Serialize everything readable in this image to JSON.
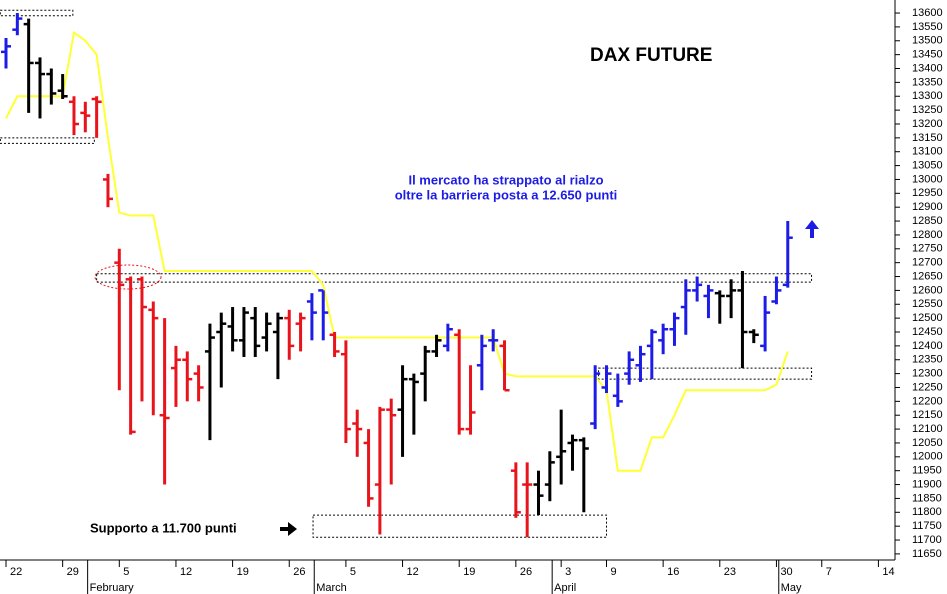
{
  "chart_data": {
    "type": "ohlc",
    "title": "DAX FUTURE",
    "annotations": [
      "Il mercato ha strappato al rialzo",
      "oltre la barriera posta a 12.650 punti",
      "Supporto a 11.700 punti"
    ],
    "categories": [
      "22",
      null,
      null,
      null,
      null,
      "29",
      null,
      null,
      null,
      null,
      "5",
      null,
      null,
      null,
      null,
      "12",
      null,
      null,
      null,
      null,
      "19",
      null,
      null,
      null,
      null,
      "26",
      null,
      null,
      null,
      null,
      "5",
      null,
      null,
      null,
      null,
      "12",
      null,
      null,
      null,
      null,
      "19",
      null,
      null,
      null,
      null,
      "26",
      null,
      null,
      null,
      "3",
      null,
      null,
      null,
      "9",
      null,
      null,
      null,
      null,
      "16",
      null,
      null,
      null,
      null,
      "23",
      null,
      null,
      null,
      null,
      "30",
      null,
      null,
      null,
      "7",
      null,
      null,
      null,
      null,
      "14",
      null
    ],
    "months": [
      {
        "label": "February",
        "index": 8
      },
      {
        "label": "March",
        "index": 28
      },
      {
        "label": "April",
        "index": 49
      },
      {
        "label": "May",
        "index": 69
      }
    ],
    "open": [
      13460,
      13540,
      13560,
      13420,
      13380,
      13320,
      13280,
      13240,
      13290,
      13000,
      12700,
      12640,
      12640,
      12530,
      12150,
      12320,
      12350,
      12300,
      12380,
      12450,
      12470,
      12420,
      12500,
      12430,
      12450,
      12500,
      12480,
      12560,
      12600,
      12440,
      12370,
      12120,
      12050,
      11900,
      12170,
      12170,
      12280,
      12300,
      12380,
      12400,
      12440,
      12100,
      12330,
      12420,
      12400,
      11950,
      11900,
      11900,
      11900,
      12000,
      12050,
      12060,
      12120,
      12250,
      12220,
      12300,
      12330,
      12400,
      12420,
      12460,
      12540,
      12600,
      12580,
      12590,
      12580,
      12600,
      12450,
      12400,
      12560,
      12620,
      null,
      null,
      null,
      null,
      null,
      null,
      null,
      null,
      null
    ],
    "high": [
      13510,
      13600,
      13580,
      13440,
      13400,
      13380,
      13300,
      13280,
      13300,
      13020,
      12750,
      12650,
      12650,
      12560,
      12500,
      12400,
      12380,
      12330,
      12480,
      12520,
      12540,
      12540,
      12540,
      12520,
      12520,
      12530,
      12520,
      12590,
      12600,
      12450,
      12420,
      12170,
      12100,
      12180,
      12210,
      12330,
      12300,
      12400,
      12440,
      12480,
      12460,
      12330,
      12440,
      12460,
      12420,
      11980,
      11980,
      11950,
      12020,
      12170,
      12080,
      12070,
      12330,
      12330,
      12300,
      12380,
      12400,
      12460,
      12480,
      12520,
      12640,
      12650,
      12620,
      12600,
      12640,
      12670,
      12460,
      12580,
      12650,
      12850,
      null,
      null,
      null,
      null,
      null,
      null,
      null,
      null,
      null
    ],
    "low": [
      13400,
      13520,
      13240,
      13220,
      13270,
      13290,
      13160,
      13170,
      13150,
      12900,
      12240,
      12080,
      12200,
      12150,
      11900,
      12180,
      12200,
      12200,
      12060,
      12250,
      12380,
      12360,
      12360,
      12380,
      12280,
      12350,
      12380,
      12420,
      12420,
      12360,
      12050,
      12000,
      11820,
      11720,
      11900,
      12000,
      12080,
      12200,
      12360,
      12380,
      12080,
      12080,
      12240,
      12380,
      12240,
      11780,
      11710,
      11790,
      11840,
      11900,
      11950,
      11800,
      12100,
      12230,
      12180,
      12260,
      12270,
      12280,
      12370,
      12400,
      12440,
      12560,
      12500,
      12480,
      12500,
      12320,
      12410,
      12380,
      12550,
      12610,
      null,
      null,
      null,
      null,
      null,
      null,
      null,
      null,
      null
    ],
    "close": [
      13480,
      13580,
      13420,
      13380,
      13310,
      13300,
      13200,
      13230,
      13280,
      12930,
      12620,
      12090,
      12540,
      12500,
      12140,
      12350,
      12280,
      12250,
      12430,
      12480,
      12420,
      12520,
      12400,
      12480,
      12500,
      12400,
      12500,
      12520,
      12520,
      12380,
      12100,
      12100,
      11850,
      12170,
      12150,
      12280,
      12270,
      12380,
      12420,
      12460,
      12100,
      12160,
      12400,
      12420,
      12240,
      11800,
      11900,
      11860,
      11980,
      12020,
      12060,
      12030,
      12300,
      12300,
      12200,
      12350,
      12370,
      12450,
      12460,
      12500,
      12600,
      12620,
      12600,
      12580,
      12600,
      12450,
      12440,
      12520,
      12600,
      12790,
      null,
      null,
      null,
      null,
      null,
      null,
      null,
      null,
      null
    ],
    "bar_colors": [
      "#1c1ce6",
      "#1c1ce6",
      "#000000",
      "#000000",
      "#000000",
      "#000000",
      "#e8141b",
      "#e8141b",
      "#e8141b",
      "#e8141b",
      "#e8141b",
      "#e8141b",
      "#e8141b",
      "#e8141b",
      "#e8141b",
      "#e8141b",
      "#e8141b",
      "#e8141b",
      "#000000",
      "#000000",
      "#000000",
      "#000000",
      "#000000",
      "#000000",
      "#000000",
      "#e8141b",
      "#e8141b",
      "#1c1ce6",
      "#1c1ce6",
      "#e8141b",
      "#e8141b",
      "#e8141b",
      "#e8141b",
      "#e8141b",
      "#e8141b",
      "#000000",
      "#000000",
      "#000000",
      "#000000",
      "#1c1ce6",
      "#e8141b",
      "#e8141b",
      "#1c1ce6",
      "#1c1ce6",
      "#e8141b",
      "#e8141b",
      "#e8141b",
      "#000000",
      "#000000",
      "#000000",
      "#000000",
      "#000000",
      "#1c1ce6",
      "#1c1ce6",
      "#1c1ce6",
      "#1c1ce6",
      "#1c1ce6",
      "#1c1ce6",
      "#1c1ce6",
      "#1c1ce6",
      "#1c1ce6",
      "#1c1ce6",
      "#1c1ce6",
      "#000000",
      "#000000",
      "#000000",
      "#000000",
      "#1c1ce6",
      "#1c1ce6",
      "#1c1ce6",
      null,
      null,
      null,
      null,
      null,
      null,
      null,
      null,
      null
    ],
    "line": {
      "color": "#ffff33",
      "values": [
        13220,
        13300,
        13300,
        13300,
        13300,
        13300,
        13530,
        13500,
        13450,
        13150,
        12880,
        12870,
        12870,
        12870,
        12670,
        12670,
        12670,
        12670,
        12670,
        12670,
        12670,
        12670,
        12670,
        12670,
        12670,
        12670,
        12670,
        12670,
        12620,
        12430,
        12430,
        12430,
        12430,
        12430,
        12430,
        12430,
        12430,
        12430,
        12430,
        12430,
        12430,
        12430,
        12430,
        12430,
        12300,
        12290,
        12290,
        12290,
        12290,
        12290,
        12290,
        12290,
        12290,
        12240,
        11950,
        11950,
        11950,
        12070,
        12070,
        12150,
        12240,
        12240,
        12240,
        12240,
        12240,
        12240,
        12240,
        12240,
        12260,
        12380,
        null,
        null,
        null,
        null,
        null,
        null,
        null,
        null,
        null
      ]
    },
    "zones": [
      {
        "low": 13590,
        "high": 13610,
        "start": -0.5,
        "end": 5.9
      },
      {
        "low": 13130,
        "high": 13150,
        "start": -0.5,
        "end": 7.8
      },
      {
        "low": 12630,
        "high": 12660,
        "start": 8,
        "end": 71.1
      },
      {
        "low": 12280,
        "high": 12320,
        "start": 52.3,
        "end": 71.1
      },
      {
        "low": 11710,
        "high": 11790,
        "start": 27.1,
        "end": 53
      }
    ],
    "ylim": [
      11628,
      13647
    ],
    "yticks": [
      11650,
      11700,
      11750,
      11800,
      11850,
      11900,
      11950,
      12000,
      12050,
      12100,
      12150,
      12200,
      12250,
      12300,
      12350,
      12400,
      12450,
      12500,
      12550,
      12600,
      12650,
      12700,
      12750,
      12800,
      12850,
      12900,
      12950,
      13000,
      13050,
      13100,
      13150,
      13200,
      13250,
      13300,
      13350,
      13400,
      13450,
      13500,
      13550,
      13600
    ]
  }
}
